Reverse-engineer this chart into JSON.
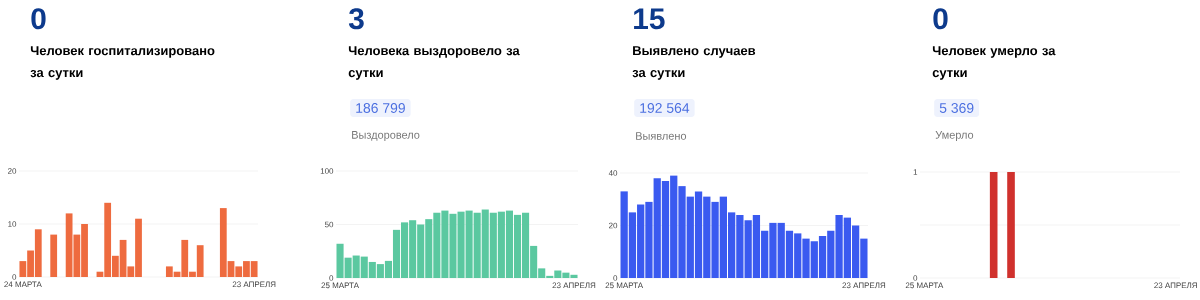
{
  "chart_data": [
    {
      "type": "bar",
      "title": "0",
      "subtitle": "Человек госпитализировано за сутки",
      "categories": [
        "24 МАРТА",
        null,
        null,
        null,
        null,
        null,
        null,
        null,
        null,
        null,
        null,
        null,
        null,
        null,
        null,
        null,
        null,
        null,
        null,
        null,
        null,
        null,
        null,
        null,
        null,
        null,
        null,
        null,
        null,
        null,
        "23 АПРЕЛЯ"
      ],
      "values": [
        3,
        5,
        9,
        0,
        8,
        0,
        12,
        8,
        10,
        0,
        1,
        14,
        4,
        7,
        2,
        11,
        0,
        0,
        0,
        2,
        1,
        7,
        1,
        6,
        0,
        0,
        13,
        3,
        2,
        3,
        3
      ],
      "color": "#ee6b3f",
      "ylim": [
        0,
        20
      ],
      "yticks": [
        0,
        10,
        20
      ],
      "grid": "y"
    },
    {
      "type": "bar",
      "title": "3",
      "subtitle": "Человека выздоровело за сутки",
      "annotations": [
        "186 799",
        "Выздоровело"
      ],
      "categories": [
        "25 МАРТА",
        null,
        null,
        null,
        null,
        null,
        null,
        null,
        null,
        null,
        null,
        null,
        null,
        null,
        null,
        null,
        null,
        null,
        null,
        null,
        null,
        null,
        null,
        null,
        null,
        null,
        null,
        null,
        null,
        "23 АПРЕЛЯ"
      ],
      "values": [
        32,
        19,
        21,
        20,
        15,
        13,
        16,
        45,
        52,
        54,
        50,
        55,
        61,
        63,
        60,
        62,
        63,
        61,
        64,
        61,
        62,
        63,
        59,
        61,
        30,
        9,
        2,
        7,
        5,
        3
      ],
      "color": "#5bc8a0",
      "ylim": [
        0,
        100
      ],
      "yticks": [
        0,
        50,
        100
      ],
      "grid": "y"
    },
    {
      "type": "bar",
      "title": "15",
      "subtitle": "Выявлено случаев за сутки",
      "annotations": [
        "192 564",
        "Выявлено"
      ],
      "categories": [
        "25 МАРТА",
        null,
        null,
        null,
        null,
        null,
        null,
        null,
        null,
        null,
        null,
        null,
        null,
        null,
        null,
        null,
        null,
        null,
        null,
        null,
        null,
        null,
        null,
        null,
        null,
        null,
        null,
        null,
        null,
        "23 АПРЕЛЯ"
      ],
      "values": [
        33,
        25,
        28,
        29,
        38,
        37,
        39,
        35,
        31,
        33,
        31,
        29,
        31,
        25,
        24,
        22,
        24,
        18,
        21,
        21,
        18,
        17,
        15,
        14,
        16,
        18,
        24,
        23,
        20,
        15
      ],
      "color": "#3a5af0",
      "ylim": [
        0,
        40
      ],
      "yticks": [
        0,
        20,
        40
      ],
      "grid": "y"
    },
    {
      "type": "bar",
      "title": "0",
      "subtitle": "Человек умерло за сутки",
      "annotations": [
        "5 369",
        "Умерло"
      ],
      "categories": [
        "25 МАРТА",
        null,
        null,
        null,
        null,
        null,
        null,
        null,
        null,
        null,
        null,
        null,
        null,
        null,
        null,
        null,
        null,
        null,
        null,
        null,
        null,
        null,
        null,
        null,
        null,
        null,
        null,
        null,
        null,
        "23 АПРЕЛЯ"
      ],
      "values": [
        0,
        0,
        0,
        0,
        0,
        0,
        0,
        0,
        1,
        0,
        1,
        0,
        0,
        0,
        0,
        0,
        0,
        0,
        0,
        0,
        0,
        0,
        0,
        0,
        0,
        0,
        0,
        0,
        0,
        0
      ],
      "color": "#d0312d",
      "ylim": [
        0,
        1
      ],
      "yticks": [
        0,
        {
          "value": 0.5,
          "label": null
        },
        1
      ],
      "grid": "y"
    }
  ]
}
